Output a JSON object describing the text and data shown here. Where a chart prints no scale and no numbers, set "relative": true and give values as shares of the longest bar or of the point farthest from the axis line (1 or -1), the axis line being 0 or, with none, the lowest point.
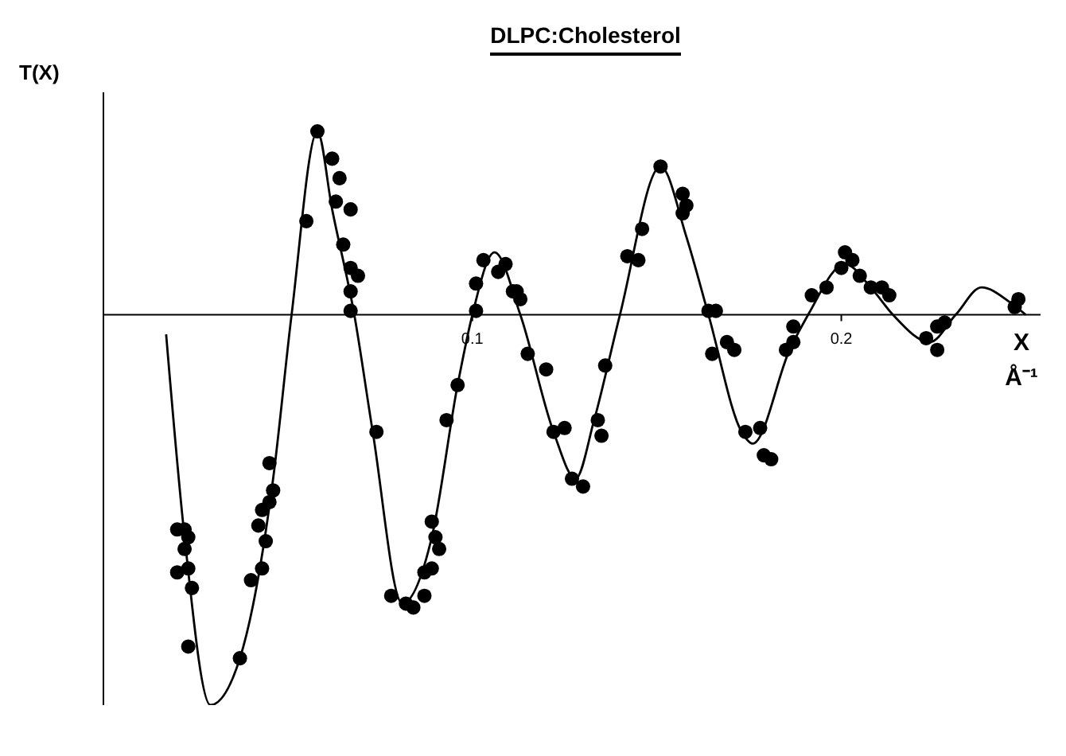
{
  "chart_data": {
    "type": "line",
    "title": "DLPC:Cholesterol",
    "xlabel": "X Å⁻¹",
    "ylabel": "T(X)",
    "relative": true,
    "xlim": [
      0,
      0.254
    ],
    "xticks": [
      0.1,
      0.2
    ],
    "legend": false,
    "grid": false,
    "tick_labels": "x",
    "series": [
      {
        "type": "line",
        "color": "#000000",
        "marker": "none",
        "line_style": "solid",
        "x": [
          0.017,
          0.022,
          0.029,
          0.037,
          0.046,
          0.051,
          0.058,
          0.062,
          0.068,
          0.073,
          0.081,
          0.089,
          0.096,
          0.1,
          0.106,
          0.113,
          0.122,
          0.128,
          0.133,
          0.14,
          0.151,
          0.158,
          0.164,
          0.173,
          0.176,
          0.186,
          0.191,
          0.201,
          0.208,
          0.214,
          0.224,
          0.231,
          0.238,
          0.246,
          0.25
        ],
        "values": [
          -0.05,
          -0.57,
          -1,
          -0.88,
          -0.42,
          0,
          0.47,
          0.27,
          0,
          -0.3,
          -0.74,
          -0.57,
          -0.18,
          0,
          0.16,
          0,
          -0.3,
          -0.42,
          -0.27,
          0,
          0.38,
          0.2,
          0,
          -0.3,
          -0.33,
          -0.09,
          0,
          0.13,
          0.07,
          0,
          -0.07,
          0,
          0.07,
          0.03,
          0
        ]
      },
      {
        "type": "scatter",
        "color": "#000000",
        "marker": "circle",
        "x": [
          0.02,
          0.022,
          0.023,
          0.022,
          0.02,
          0.023,
          0.024,
          0.023,
          0.037,
          0.04,
          0.043,
          0.044,
          0.042,
          0.043,
          0.045,
          0.046,
          0.045,
          0.055,
          0.058,
          0.062,
          0.064,
          0.063,
          0.067,
          0.065,
          0.067,
          0.069,
          0.067,
          0.067,
          0.074,
          0.078,
          0.082,
          0.084,
          0.087,
          0.087,
          0.089,
          0.091,
          0.09,
          0.089,
          0.093,
          0.096,
          0.101,
          0.101,
          0.103,
          0.107,
          0.109,
          0.111,
          0.113,
          0.112,
          0.115,
          0.12,
          0.122,
          0.125,
          0.127,
          0.13,
          0.135,
          0.134,
          0.136,
          0.142,
          0.145,
          0.146,
          0.151,
          0.157,
          0.158,
          0.157,
          0.164,
          0.166,
          0.165,
          0.169,
          0.171,
          0.174,
          0.178,
          0.179,
          0.181,
          0.185,
          0.187,
          0.187,
          0.192,
          0.196,
          0.2,
          0.201,
          0.203,
          0.205,
          0.208,
          0.211,
          0.213,
          0.223,
          0.226,
          0.226,
          0.228,
          0.248,
          0.247
        ],
        "values": [
          -0.55,
          -0.55,
          -0.57,
          -0.6,
          -0.66,
          -0.65,
          -0.7,
          -0.85,
          -0.88,
          -0.68,
          -0.65,
          -0.58,
          -0.54,
          -0.5,
          -0.48,
          -0.45,
          -0.38,
          0.24,
          0.47,
          0.4,
          0.35,
          0.29,
          0.27,
          0.18,
          0.12,
          0.1,
          0.06,
          0.01,
          -0.3,
          -0.72,
          -0.74,
          -0.75,
          -0.72,
          -0.66,
          -0.65,
          -0.6,
          -0.57,
          -0.53,
          -0.27,
          -0.18,
          0.01,
          0.08,
          0.14,
          0.11,
          0.13,
          0.06,
          0.04,
          0.06,
          -0.1,
          -0.14,
          -0.3,
          -0.29,
          -0.42,
          -0.44,
          -0.31,
          -0.27,
          -0.13,
          0.15,
          0.14,
          0.22,
          0.38,
          0.31,
          0.28,
          0.26,
          0.01,
          0.01,
          -0.1,
          -0.07,
          -0.09,
          -0.3,
          -0.29,
          -0.36,
          -0.37,
          -0.09,
          -0.07,
          -0.03,
          0.05,
          0.07,
          0.12,
          0.16,
          0.14,
          0.1,
          0.07,
          0.07,
          0.05,
          -0.06,
          -0.09,
          -0.03,
          -0.02,
          0.04,
          0.02
        ]
      }
    ]
  }
}
